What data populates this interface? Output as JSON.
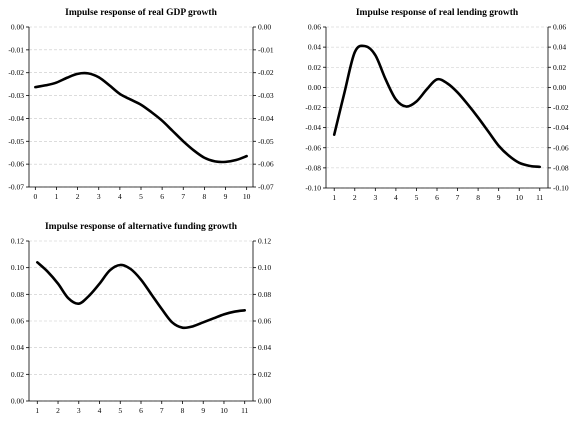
{
  "chart_data": [
    {
      "type": "line",
      "title": "Impulse response of real GDP growth",
      "xlabel": "",
      "ylabel": "",
      "x": [
        0,
        0.5,
        1,
        1.5,
        2,
        2.5,
        3,
        3.5,
        4,
        4.5,
        5,
        5.5,
        6,
        6.5,
        7,
        7.5,
        8,
        8.5,
        9,
        9.5,
        10
      ],
      "series": [
        {
          "values": [
            -0.0263,
            -0.0255,
            -0.0243,
            -0.0222,
            -0.0205,
            -0.0203,
            -0.022,
            -0.0255,
            -0.0293,
            -0.0317,
            -0.034,
            -0.0373,
            -0.041,
            -0.0455,
            -0.05,
            -0.054,
            -0.0572,
            -0.0588,
            -0.059,
            -0.0582,
            -0.0565
          ]
        }
      ],
      "xticks": [
        "0",
        "1",
        "2",
        "3",
        "4",
        "5",
        "6",
        "7",
        "8",
        "9",
        "10"
      ],
      "yticks": [
        "0.00",
        "-0.01",
        "-0.02",
        "-0.03",
        "-0.04",
        "-0.05",
        "-0.06",
        "-0.07"
      ],
      "xlim": [
        -0.3,
        10.3
      ],
      "ylim": [
        -0.07,
        0.0
      ],
      "grid": true
    },
    {
      "type": "line",
      "title": "Impulse response of real lending growth",
      "xlabel": "",
      "ylabel": "",
      "x": [
        1,
        1.5,
        2,
        2.5,
        3,
        3.5,
        4,
        4.5,
        5,
        5.5,
        6,
        6.5,
        7,
        7.5,
        8,
        8.5,
        9,
        9.5,
        10,
        10.5,
        11
      ],
      "series": [
        {
          "values": [
            -0.047,
            -0.005,
            0.035,
            0.041,
            0.032,
            0.008,
            -0.012,
            -0.019,
            -0.014,
            -0.002,
            0.008,
            0.004,
            -0.005,
            -0.017,
            -0.03,
            -0.044,
            -0.058,
            -0.068,
            -0.075,
            -0.078,
            -0.079
          ]
        }
      ],
      "xticks": [
        "1",
        "2",
        "3",
        "4",
        "5",
        "6",
        "7",
        "8",
        "9",
        "10",
        "11"
      ],
      "yticks": [
        "0.06",
        "0.04",
        "0.02",
        "0.00",
        "-0.02",
        "-0.04",
        "-0.06",
        "-0.08",
        "-0.10"
      ],
      "xlim": [
        0.6,
        11.4
      ],
      "ylim": [
        -0.1,
        0.06
      ],
      "grid": true
    },
    {
      "type": "line",
      "title": "Impulse response of alternative funding growth",
      "xlabel": "",
      "ylabel": "",
      "x": [
        1,
        1.5,
        2,
        2.5,
        3,
        3.5,
        4,
        4.5,
        5,
        5.5,
        6,
        6.5,
        7,
        7.5,
        8,
        8.5,
        9,
        9.5,
        10,
        10.5,
        11
      ],
      "series": [
        {
          "values": [
            0.104,
            0.097,
            0.088,
            0.077,
            0.073,
            0.079,
            0.088,
            0.098,
            0.102,
            0.099,
            0.091,
            0.08,
            0.069,
            0.059,
            0.055,
            0.056,
            0.059,
            0.062,
            0.065,
            0.067,
            0.068
          ]
        }
      ],
      "xticks": [
        "1",
        "2",
        "3",
        "4",
        "5",
        "6",
        "7",
        "8",
        "9",
        "10",
        "11"
      ],
      "yticks": [
        "0.12",
        "0.10",
        "0.08",
        "0.06",
        "0.04",
        "0.02",
        "0.00"
      ],
      "xlim": [
        0.6,
        11.4
      ],
      "ylim": [
        0.0,
        0.12
      ],
      "grid": true
    }
  ]
}
